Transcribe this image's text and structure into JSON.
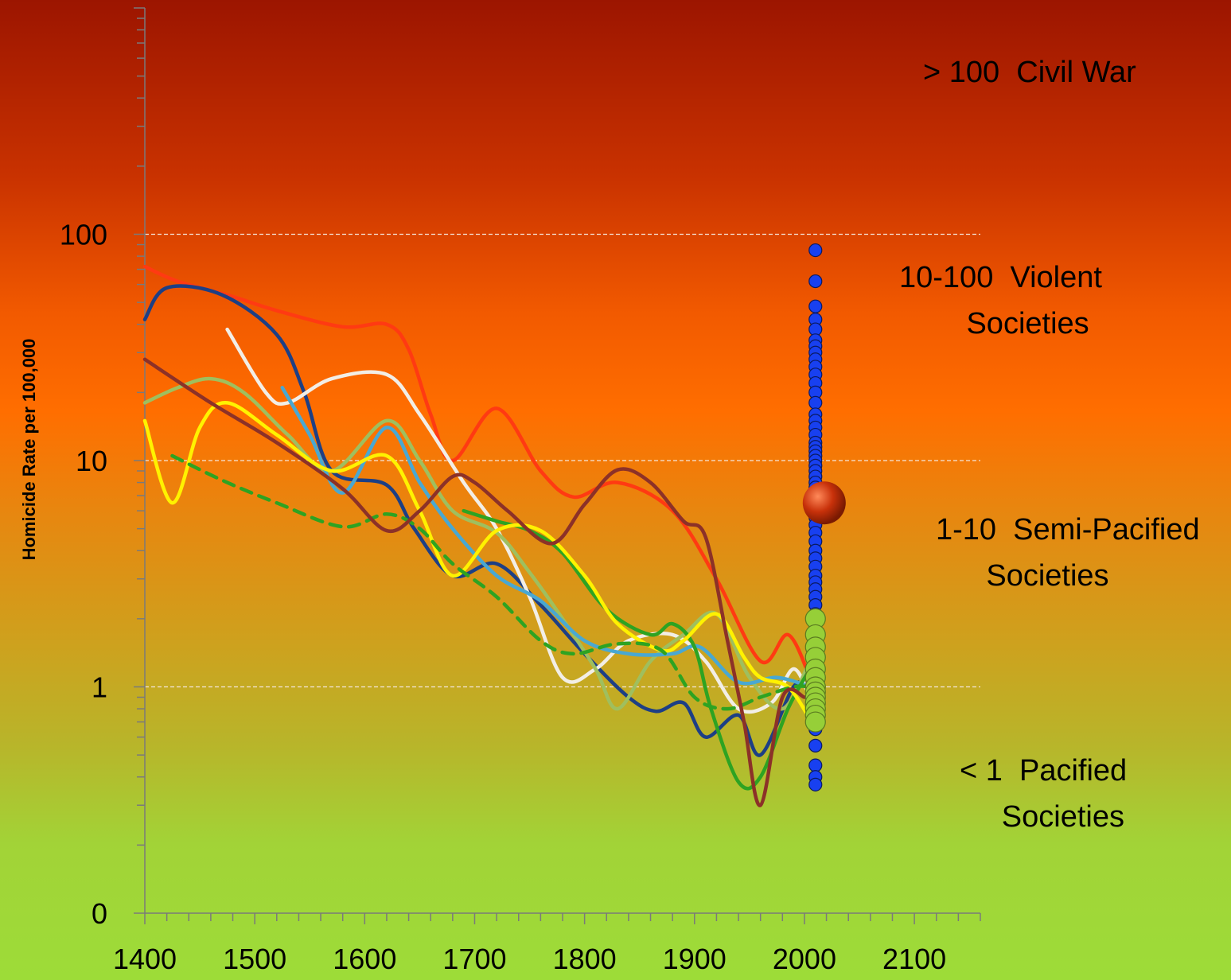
{
  "chart_data": {
    "type": "line",
    "title": "",
    "xlabel": "",
    "ylabel": "Homicide Rate per 100,000",
    "x_ticks": [
      "1400",
      "1500",
      "1600",
      "1700",
      "1800",
      "1900",
      "2000",
      "2100"
    ],
    "y_ticks": [
      "100",
      "10",
      "1",
      "0"
    ],
    "xlim": [
      1400,
      2160
    ],
    "ylim_decades": [
      0.1,
      1000
    ],
    "y_scale": "log",
    "grid": "horizontal dashed at 1, 10, 100",
    "bands": [
      {
        "range": "> 100",
        "label": "Civil War"
      },
      {
        "range": "10-100",
        "label": "Violent\nSocieties"
      },
      {
        "range": "1-10",
        "label": "Semi-Pacified\nSocieties"
      },
      {
        "range": "< 1",
        "label": "Pacified\nSocieties"
      }
    ],
    "series": [
      {
        "color": "#ff3a12",
        "dashed": false,
        "points": [
          [
            1400,
            72
          ],
          [
            1430,
            62
          ],
          [
            1480,
            53
          ],
          [
            1520,
            46
          ],
          [
            1580,
            39
          ],
          [
            1620,
            40
          ],
          [
            1640,
            31
          ],
          [
            1660,
            16
          ],
          [
            1680,
            10
          ],
          [
            1720,
            17
          ],
          [
            1760,
            9
          ],
          [
            1790,
            6.9
          ],
          [
            1830,
            8
          ],
          [
            1880,
            6
          ],
          [
            1920,
            3
          ],
          [
            1960,
            1.3
          ],
          [
            1985,
            1.7
          ],
          [
            2005,
            1.1
          ]
        ]
      },
      {
        "color": "#1d3f85",
        "dashed": false,
        "points": [
          [
            1400,
            42
          ],
          [
            1420,
            58
          ],
          [
            1470,
            54
          ],
          [
            1520,
            36
          ],
          [
            1545,
            20
          ],
          [
            1570,
            9
          ],
          [
            1620,
            7.8
          ],
          [
            1645,
            5
          ],
          [
            1680,
            3.1
          ],
          [
            1720,
            3.5
          ],
          [
            1760,
            2.3
          ],
          [
            1800,
            1.4
          ],
          [
            1840,
            0.9
          ],
          [
            1865,
            0.78
          ],
          [
            1890,
            0.85
          ],
          [
            1910,
            0.6
          ],
          [
            1940,
            0.75
          ],
          [
            1960,
            0.5
          ],
          [
            1990,
            1.0
          ],
          [
            2005,
            1.0
          ]
        ]
      },
      {
        "color": "#f2eee6",
        "dashed": false,
        "points": [
          [
            1475,
            38
          ],
          [
            1510,
            20
          ],
          [
            1530,
            18
          ],
          [
            1570,
            23
          ],
          [
            1620,
            24
          ],
          [
            1650,
            16
          ],
          [
            1690,
            8
          ],
          [
            1720,
            5
          ],
          [
            1750,
            2.5
          ],
          [
            1780,
            1.1
          ],
          [
            1810,
            1.2
          ],
          [
            1840,
            1.6
          ],
          [
            1880,
            1.7
          ],
          [
            1910,
            1.3
          ],
          [
            1940,
            0.8
          ],
          [
            1970,
            0.85
          ],
          [
            1990,
            1.2
          ],
          [
            2005,
            0.9
          ]
        ]
      },
      {
        "color": "#9fbf5e",
        "dashed": false,
        "points": [
          [
            1400,
            18
          ],
          [
            1430,
            21
          ],
          [
            1460,
            23
          ],
          [
            1490,
            20
          ],
          [
            1530,
            13
          ],
          [
            1570,
            9
          ],
          [
            1620,
            15
          ],
          [
            1650,
            10
          ],
          [
            1680,
            6
          ],
          [
            1720,
            4.8
          ],
          [
            1750,
            3.2
          ],
          [
            1780,
            2
          ],
          [
            1810,
            1.2
          ],
          [
            1830,
            0.8
          ],
          [
            1860,
            1.3
          ],
          [
            1890,
            1.7
          ],
          [
            1920,
            2.1
          ],
          [
            1950,
            1.1
          ],
          [
            1980,
            0.8
          ],
          [
            2005,
            1.3
          ]
        ]
      },
      {
        "color": "#49a8d2",
        "dashed": false,
        "points": [
          [
            1525,
            21
          ],
          [
            1550,
            13
          ],
          [
            1580,
            7.2
          ],
          [
            1620,
            14
          ],
          [
            1650,
            8
          ],
          [
            1680,
            5
          ],
          [
            1720,
            3.1
          ],
          [
            1760,
            2.4
          ],
          [
            1800,
            1.6
          ],
          [
            1840,
            1.4
          ],
          [
            1880,
            1.4
          ],
          [
            1905,
            1.5
          ],
          [
            1940,
            1.05
          ],
          [
            1975,
            1.1
          ],
          [
            2005,
            1.0
          ]
        ]
      },
      {
        "color": "#2ea322",
        "dashed": false,
        "points": [
          [
            1690,
            6
          ],
          [
            1720,
            5.4
          ],
          [
            1750,
            4.9
          ],
          [
            1780,
            3.9
          ],
          [
            1820,
            2.2
          ],
          [
            1860,
            1.7
          ],
          [
            1880,
            1.9
          ],
          [
            1900,
            1.5
          ],
          [
            1915,
            0.8
          ],
          [
            1940,
            0.38
          ],
          [
            1960,
            0.4
          ],
          [
            1985,
            0.8
          ],
          [
            2005,
            1.2
          ]
        ]
      },
      {
        "color": "#fff200",
        "dashed": false,
        "points": [
          [
            1400,
            15
          ],
          [
            1425,
            6.5
          ],
          [
            1450,
            14
          ],
          [
            1475,
            18
          ],
          [
            1520,
            13
          ],
          [
            1570,
            9
          ],
          [
            1620,
            10.5
          ],
          [
            1650,
            6
          ],
          [
            1680,
            3.1
          ],
          [
            1720,
            4.9
          ],
          [
            1760,
            4.9
          ],
          [
            1800,
            3.1
          ],
          [
            1830,
            1.9
          ],
          [
            1870,
            1.45
          ],
          [
            1890,
            1.6
          ],
          [
            1920,
            2.1
          ],
          [
            1945,
            1.35
          ],
          [
            1960,
            1.1
          ],
          [
            1985,
            1.0
          ],
          [
            2005,
            0.72
          ]
        ]
      },
      {
        "color": "#2ea322",
        "dashed": true,
        "points": [
          [
            1425,
            10.5
          ],
          [
            1470,
            8.2
          ],
          [
            1520,
            6.5
          ],
          [
            1580,
            5.1
          ],
          [
            1620,
            5.8
          ],
          [
            1650,
            5
          ],
          [
            1680,
            3.5
          ],
          [
            1720,
            2.5
          ],
          [
            1760,
            1.6
          ],
          [
            1790,
            1.4
          ],
          [
            1830,
            1.55
          ],
          [
            1870,
            1.45
          ],
          [
            1900,
            0.9
          ],
          [
            1930,
            0.8
          ],
          [
            1960,
            0.9
          ],
          [
            1990,
            1.0
          ],
          [
            2005,
            1.0
          ]
        ]
      },
      {
        "color": "#8c3128",
        "dashed": false,
        "points": [
          [
            1400,
            28
          ],
          [
            1460,
            18
          ],
          [
            1520,
            12
          ],
          [
            1580,
            7.5
          ],
          [
            1620,
            4.9
          ],
          [
            1650,
            6
          ],
          [
            1680,
            8.5
          ],
          [
            1700,
            8
          ],
          [
            1730,
            6
          ],
          [
            1770,
            4.3
          ],
          [
            1800,
            6.4
          ],
          [
            1830,
            9.1
          ],
          [
            1860,
            8
          ],
          [
            1890,
            5.4
          ],
          [
            1910,
            4.6
          ],
          [
            1930,
            1.6
          ],
          [
            1945,
            0.7
          ],
          [
            1960,
            0.3
          ],
          [
            1980,
            0.9
          ],
          [
            2000,
            0.9
          ]
        ]
      }
    ],
    "scatter_blue": {
      "color": "#1840f0",
      "x": 2010,
      "values": [
        85,
        62,
        48,
        42,
        38,
        34,
        32,
        30,
        28,
        26,
        24,
        22,
        20,
        18,
        16,
        15,
        14,
        13,
        12,
        11.5,
        11,
        10.5,
        10,
        9.5,
        9,
        8.5,
        8,
        7.6,
        7.2,
        6.8,
        6.4,
        6,
        5.6,
        5.2,
        4.8,
        4.4,
        4.0,
        3.7,
        3.4,
        3.1,
        2.9,
        2.7,
        2.5,
        2.3,
        2.1,
        1.9,
        1.7,
        1.5,
        1.3,
        1.2,
        1.1,
        1.0,
        0.9,
        0.8,
        0.7,
        0.65,
        0.55,
        0.45,
        0.4,
        0.37
      ]
    },
    "scatter_green": {
      "color": "#96cf38",
      "x": 2010,
      "values": [
        2.0,
        1.7,
        1.5,
        1.35,
        1.2,
        1.1,
        1.0,
        0.95,
        0.9,
        0.85,
        0.8,
        0.75,
        0.7
      ]
    },
    "highlight_point": {
      "color": "#c8310a",
      "x": 2018,
      "value": 6.5
    }
  }
}
